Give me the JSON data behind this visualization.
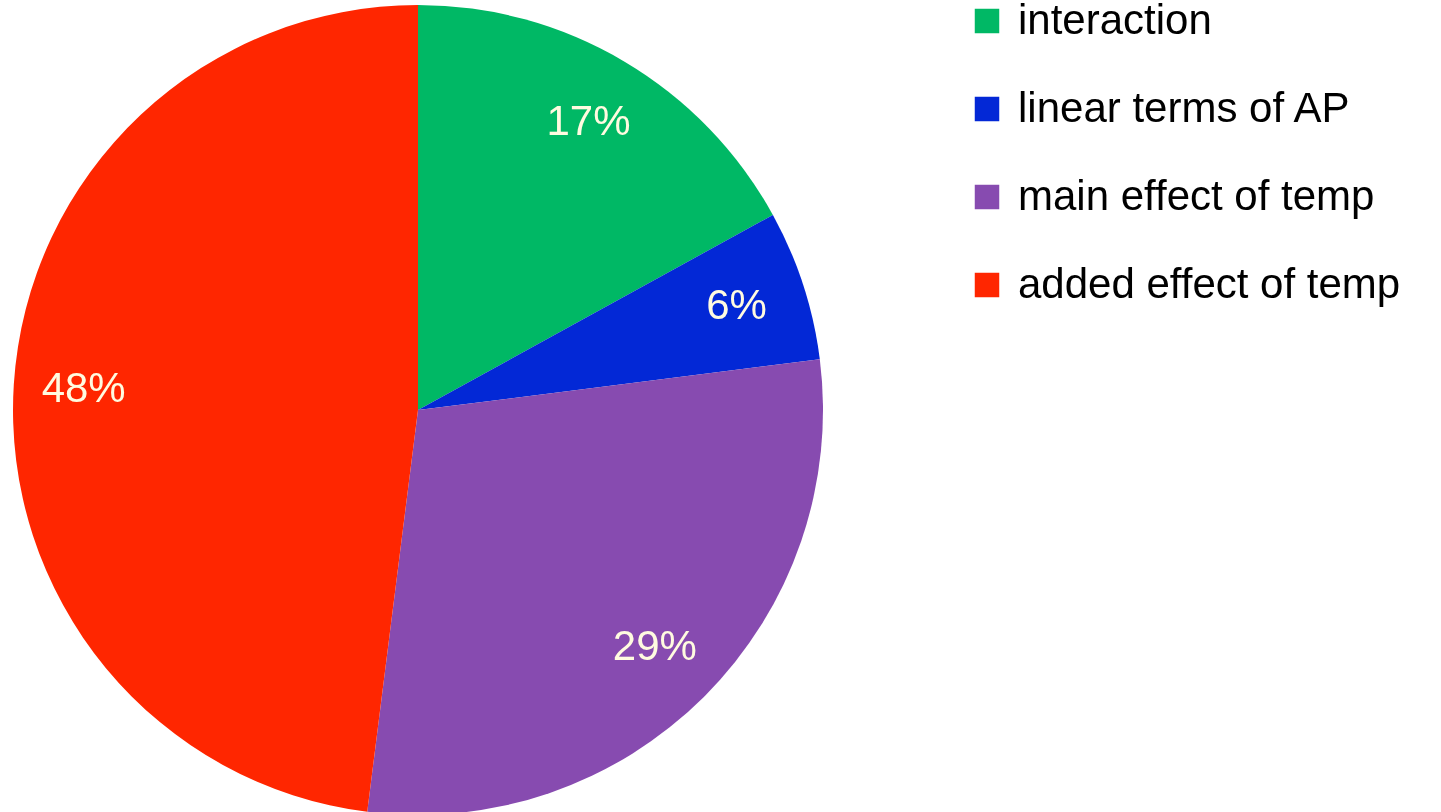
{
  "chart_data": {
    "type": "pie",
    "categories": [
      "interaction",
      "linear terms of AP",
      "main effect of temp",
      "added effect of temp"
    ],
    "values": [
      17,
      6,
      29,
      48
    ],
    "colors": [
      "#00b865",
      "#0328d6",
      "#874bb0",
      "#ff2600"
    ],
    "value_labels": [
      "17%",
      "6%",
      "29%",
      "48%"
    ],
    "legend": "right"
  }
}
